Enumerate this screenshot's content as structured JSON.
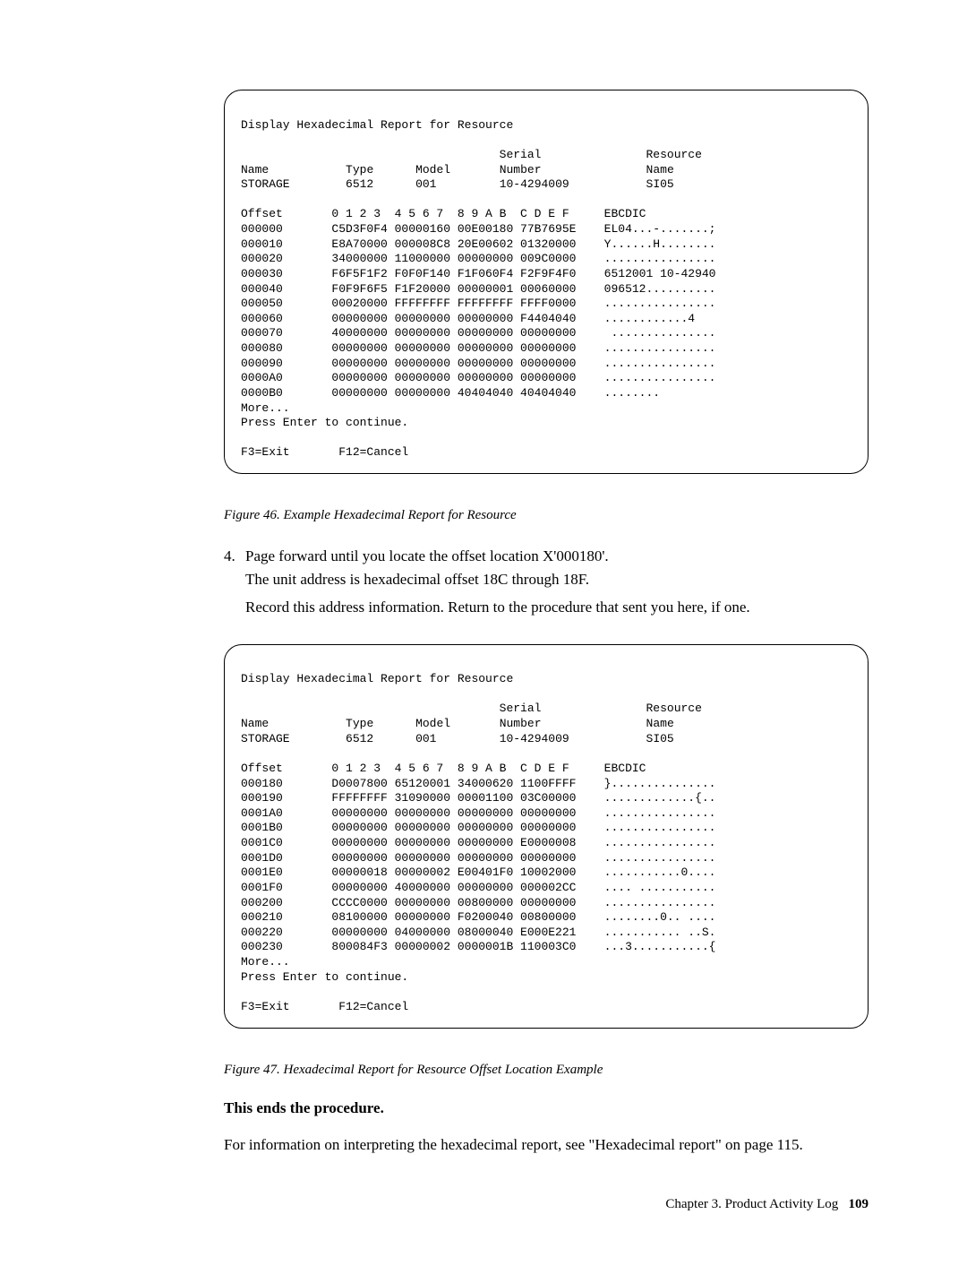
{
  "panel1": {
    "title": "Display Hexadecimal Report for Resource",
    "headers": {
      "name_lbl": "Name",
      "type_lbl": "Type",
      "model_lbl": "Model",
      "serial_lbl": "Serial",
      "number_lbl": "Number",
      "resource_lbl": "Resource",
      "resname_lbl": "Name"
    },
    "device": {
      "name": "STORAGE",
      "type": "6512",
      "model": "001",
      "serial": "10-4294009",
      "resource": "SI05"
    },
    "offset_header": "Offset       0 1 2 3  4 5 6 7  8 9 A B  C D E F     EBCDIC",
    "rows": [
      {
        "offset": "000000",
        "hex": "C5D3F0F4 00000160 00E00180 77B7695E",
        "ebcdic": "EL04...-.......;"
      },
      {
        "offset": "000010",
        "hex": "E8A70000 000008C8 20E00602 01320000",
        "ebcdic": "Y......H........"
      },
      {
        "offset": "000020",
        "hex": "34000000 11000000 00000000 009C0000",
        "ebcdic": "................"
      },
      {
        "offset": "000030",
        "hex": "F6F5F1F2 F0F0F140 F1F060F4 F2F9F4F0",
        "ebcdic": "6512001 10-42940"
      },
      {
        "offset": "000040",
        "hex": "F0F9F6F5 F1F20000 00000001 00060000",
        "ebcdic": "096512.........."
      },
      {
        "offset": "000050",
        "hex": "00020000 FFFFFFFF FFFFFFFF FFFF0000",
        "ebcdic": "................"
      },
      {
        "offset": "000060",
        "hex": "00000000 00000000 00000000 F4404040",
        "ebcdic": "............4   "
      },
      {
        "offset": "000070",
        "hex": "40000000 00000000 00000000 00000000",
        "ebcdic": " ..............."
      },
      {
        "offset": "000080",
        "hex": "00000000 00000000 00000000 00000000",
        "ebcdic": "................"
      },
      {
        "offset": "000090",
        "hex": "00000000 00000000 00000000 00000000",
        "ebcdic": "................"
      },
      {
        "offset": "0000A0",
        "hex": "00000000 00000000 00000000 00000000",
        "ebcdic": "................"
      },
      {
        "offset": "0000B0",
        "hex": "00000000 00000000 40404040 40404040",
        "ebcdic": "........        "
      }
    ],
    "more": "More...",
    "enter": "Press Enter to continue.",
    "fkeys": "F3=Exit       F12=Cancel"
  },
  "caption1": "Figure 46. Example Hexadecimal Report for Resource",
  "step4": {
    "num": "4.",
    "line1": "Page forward until you locate the offset location X'000180'.",
    "line2": "The unit address is hexadecimal offset 18C through 18F.",
    "line3": "Record this address information. Return to the procedure that sent you here, if one."
  },
  "panel2": {
    "title": "Display Hexadecimal Report for Resource",
    "headers": {
      "name_lbl": "Name",
      "type_lbl": "Type",
      "model_lbl": "Model",
      "serial_lbl": "Serial",
      "number_lbl": "Number",
      "resource_lbl": "Resource",
      "resname_lbl": "Name"
    },
    "device": {
      "name": "STORAGE",
      "type": "6512",
      "model": "001",
      "serial": "10-4294009",
      "resource": "SI05"
    },
    "offset_header": "Offset       0 1 2 3  4 5 6 7  8 9 A B  C D E F     EBCDIC",
    "rows": [
      {
        "offset": "000180",
        "hex": "D0007800 65120001 34000620 1100FFFF",
        "ebcdic": "}..............."
      },
      {
        "offset": "000190",
        "hex": "FFFFFFFF 31090000 00001100 03C00000",
        "ebcdic": ".............{.."
      },
      {
        "offset": "0001A0",
        "hex": "00000000 00000000 00000000 00000000",
        "ebcdic": "................"
      },
      {
        "offset": "0001B0",
        "hex": "00000000 00000000 00000000 00000000",
        "ebcdic": "................"
      },
      {
        "offset": "0001C0",
        "hex": "00000000 00000000 00000000 E0000008",
        "ebcdic": "................"
      },
      {
        "offset": "0001D0",
        "hex": "00000000 00000000 00000000 00000000",
        "ebcdic": "................"
      },
      {
        "offset": "0001E0",
        "hex": "00000018 00000002 E00401F0 10002000",
        "ebcdic": "...........0...."
      },
      {
        "offset": "0001F0",
        "hex": "00000000 40000000 00000000 000002CC",
        "ebcdic": ".... ..........."
      },
      {
        "offset": "000200",
        "hex": "CCCC0000 00000000 00800000 00000000",
        "ebcdic": "................"
      },
      {
        "offset": "000210",
        "hex": "08100000 00000000 F0200040 00800000",
        "ebcdic": "........0.. ...."
      },
      {
        "offset": "000220",
        "hex": "00000000 04000000 08000040 E000E221",
        "ebcdic": "........... ..S."
      },
      {
        "offset": "000230",
        "hex": "800084F3 00000002 0000001B 110003C0",
        "ebcdic": "...3...........{"
      }
    ],
    "more": "More...",
    "enter": "Press Enter to continue.",
    "fkeys": "F3=Exit       F12=Cancel"
  },
  "caption2": "Figure 47. Hexadecimal Report for Resource Offset Location Example",
  "ends": "This ends the procedure.",
  "final": "For information on interpreting the hexadecimal report, see \"Hexadecimal report\" on page 115.",
  "footer": {
    "chapter": "Chapter 3. Product Activity Log",
    "page": "109"
  }
}
